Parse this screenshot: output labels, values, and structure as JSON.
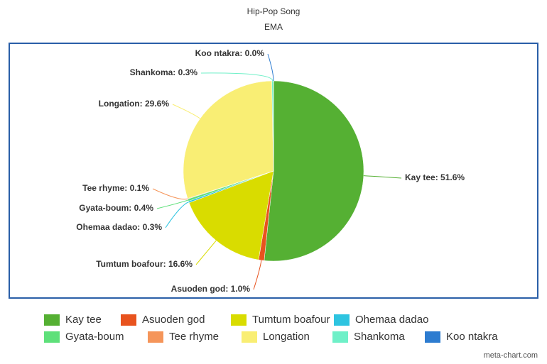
{
  "chart_data": {
    "type": "pie",
    "title": "Hip-Pop Song",
    "subtitle": "EMA",
    "categories": [
      "Kay tee",
      "Asuoden god",
      "Tumtum boafour",
      "Ohemaa dadao",
      "Gyata-boum",
      "Tee rhyme",
      "Longation",
      "Shankoma",
      "Koo ntakra"
    ],
    "values": [
      51.6,
      1.0,
      16.6,
      0.3,
      0.4,
      0.1,
      29.6,
      0.3,
      0.0
    ],
    "value_labels": [
      "Kay tee: 51.6%",
      "Asuoden god: 1.0%",
      "Tumtum boafour: 16.6%",
      "Ohemaa dadao: 0.3%",
      "Gyata-boum: 0.4%",
      "Tee rhyme: 0.1%",
      "Longation: 29.6%",
      "Shankoma: 0.3%",
      "Koo ntakra: 0.0%"
    ],
    "colors": [
      "#55b033",
      "#e8531e",
      "#d9dc00",
      "#2ec4e0",
      "#5ee07a",
      "#f5955a",
      "#f9ee74",
      "#6ff0c8",
      "#2d7cd0"
    ],
    "legend": "bottom",
    "credit": "meta-chart.com"
  }
}
